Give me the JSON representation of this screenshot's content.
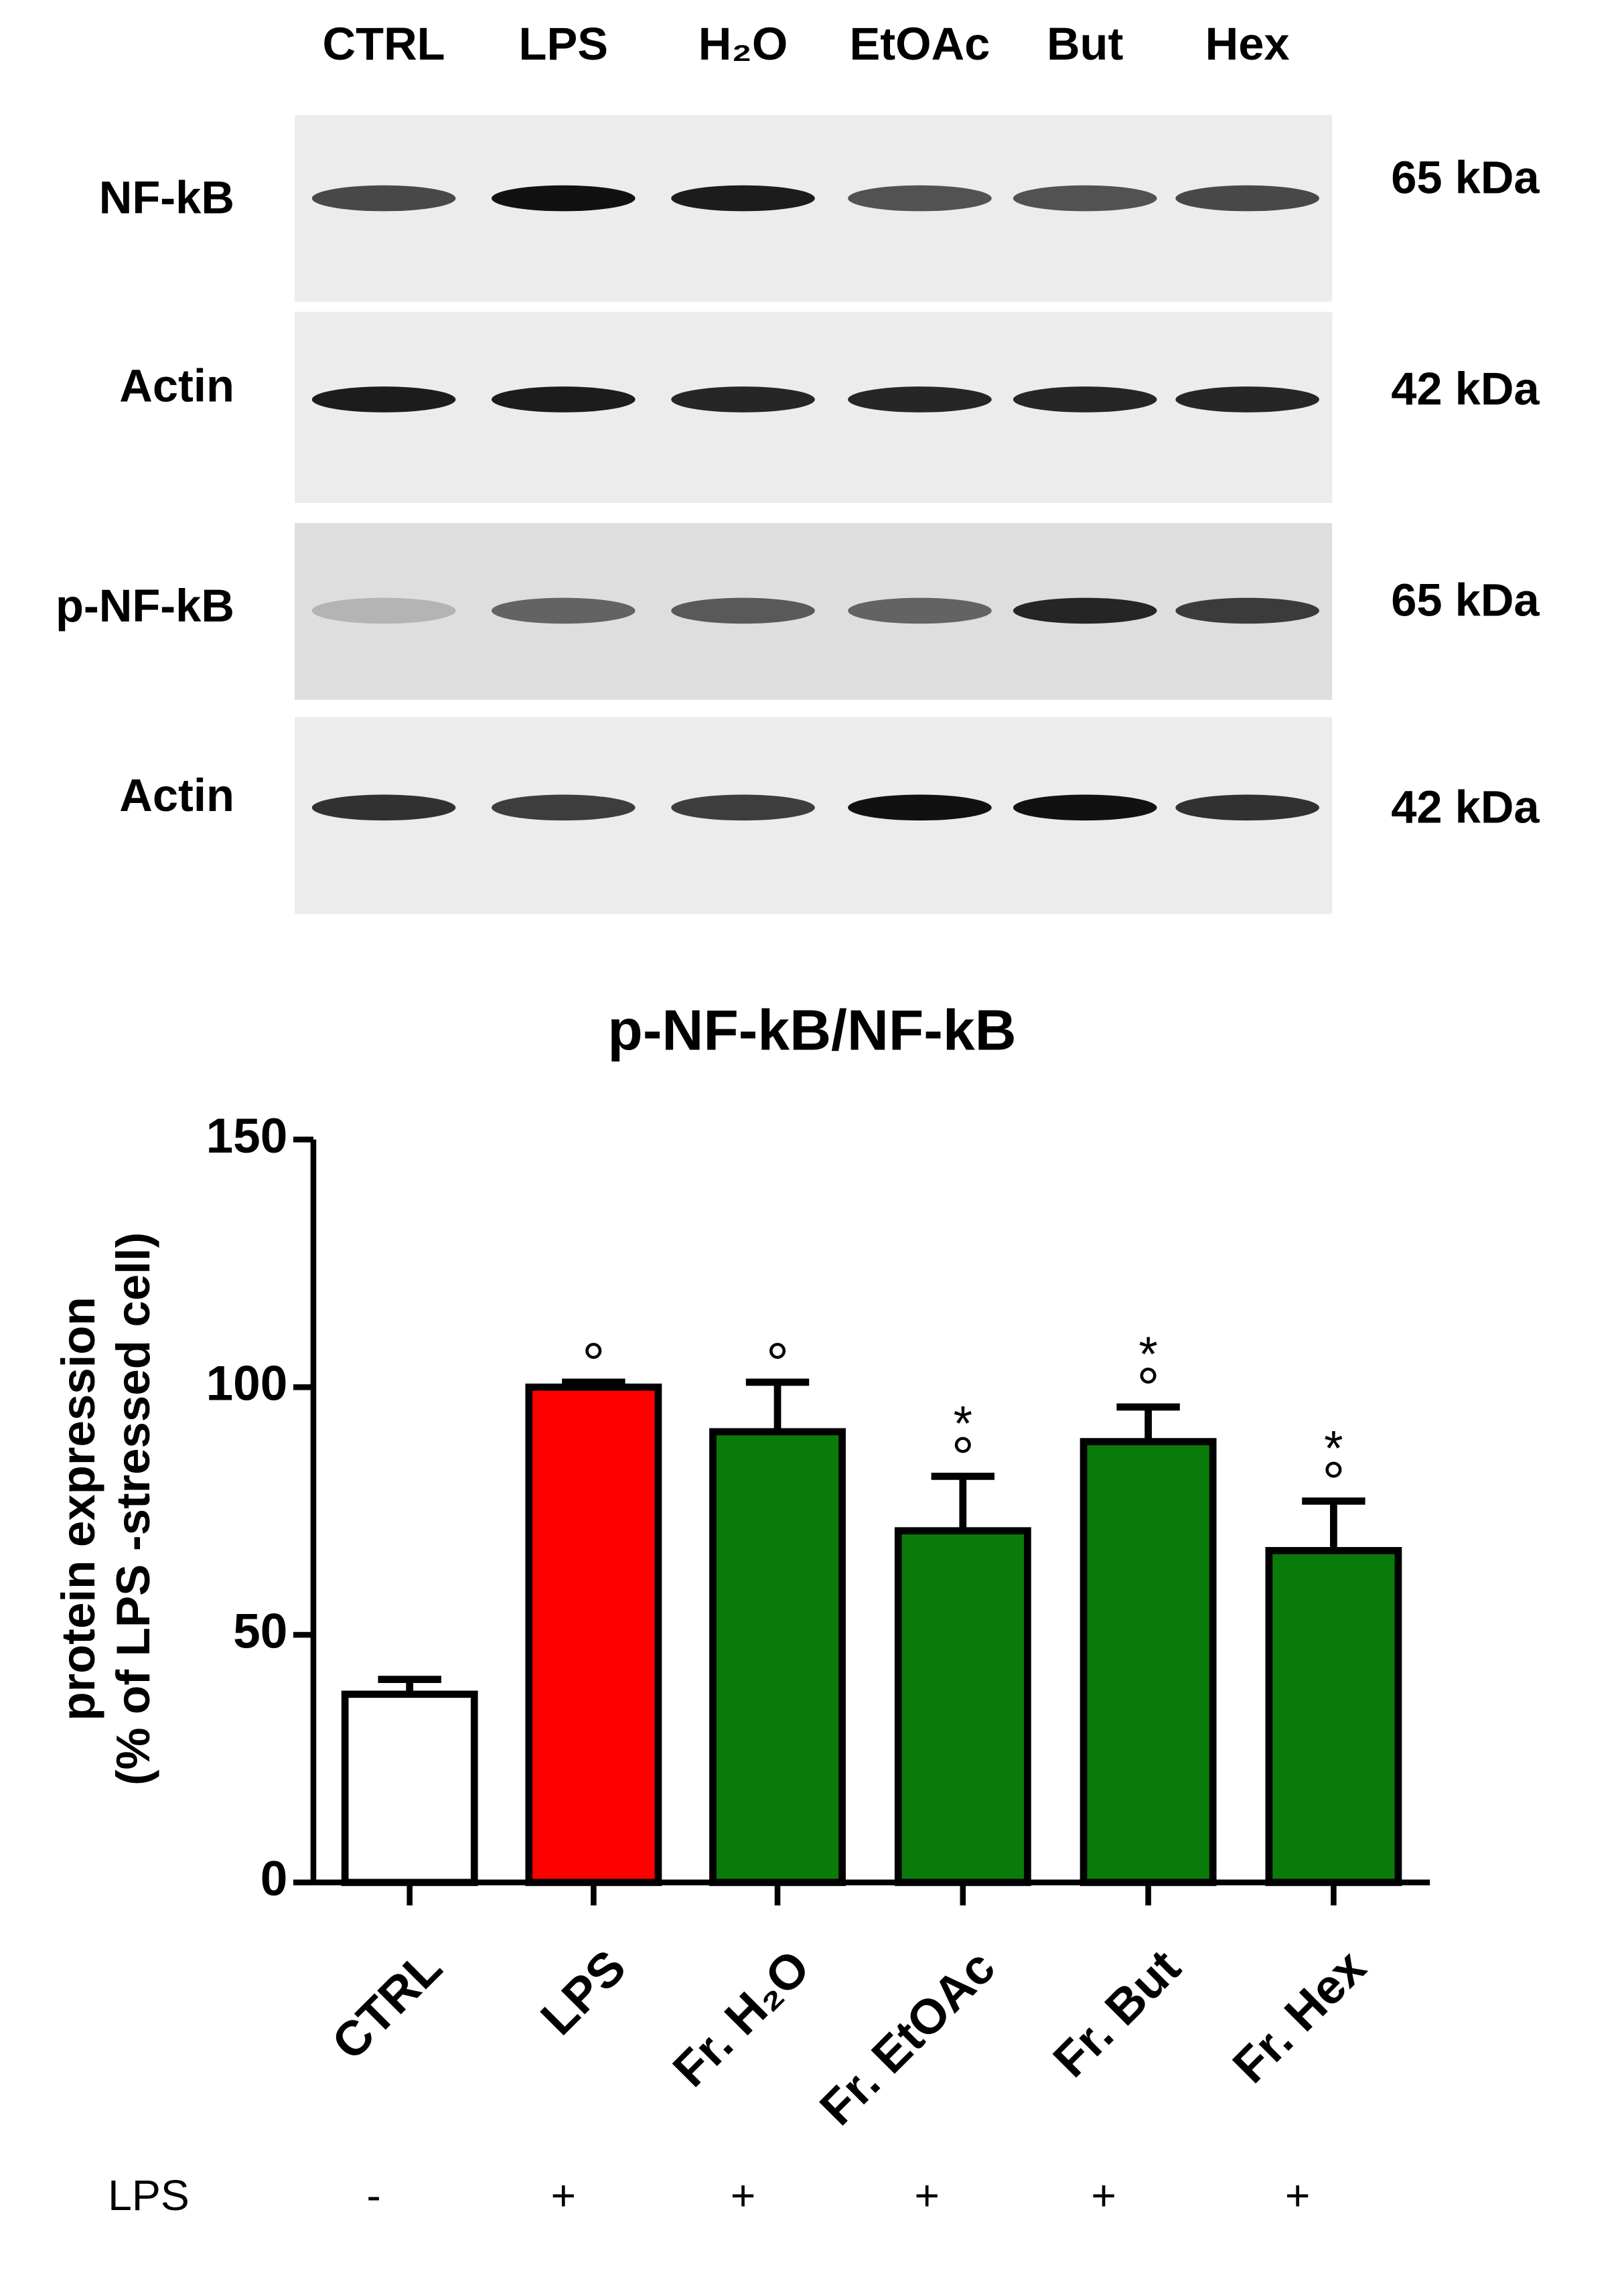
{
  "blot": {
    "lanes": [
      "CTRL",
      "LPS",
      "H₂O",
      "EtOAc",
      "But",
      "Hex"
    ],
    "rows": [
      {
        "label": "NF-kB",
        "size": "65 kDa"
      },
      {
        "label": "Actin",
        "size": "42 kDa"
      },
      {
        "label": "p-NF-kB",
        "size": "65 kDa"
      },
      {
        "label": "Actin",
        "size": "42 kDa"
      }
    ]
  },
  "chart_data": {
    "type": "bar",
    "title": "p-NF-kB/NF-kB",
    "y_label": [
      "protein expression",
      "(% of LPS -stressed cell)"
    ],
    "categories": [
      "CTRL",
      "LPS",
      "Fr. H₂O",
      "Fr. EtOAc",
      "Fr. But",
      "Fr. Hex"
    ],
    "values": [
      38,
      100,
      91,
      71,
      89,
      67
    ],
    "errors": [
      3,
      1,
      10,
      11,
      7,
      10
    ],
    "colors": [
      "#ffffff",
      "#ff0000",
      "#0a7a0a",
      "#0a7a0a",
      "#0a7a0a",
      "#0a7a0a"
    ],
    "sig_circle": [
      null,
      "°",
      "°",
      "°",
      "°",
      "°"
    ],
    "sig_star": [
      null,
      null,
      null,
      "*",
      "*",
      "*"
    ],
    "ylim": [
      0,
      150
    ],
    "yticks": [
      0,
      50,
      100,
      150
    ]
  },
  "treatment": {
    "label": "LPS",
    "values": [
      "-",
      "+",
      "+",
      "+",
      "+",
      "+"
    ]
  }
}
